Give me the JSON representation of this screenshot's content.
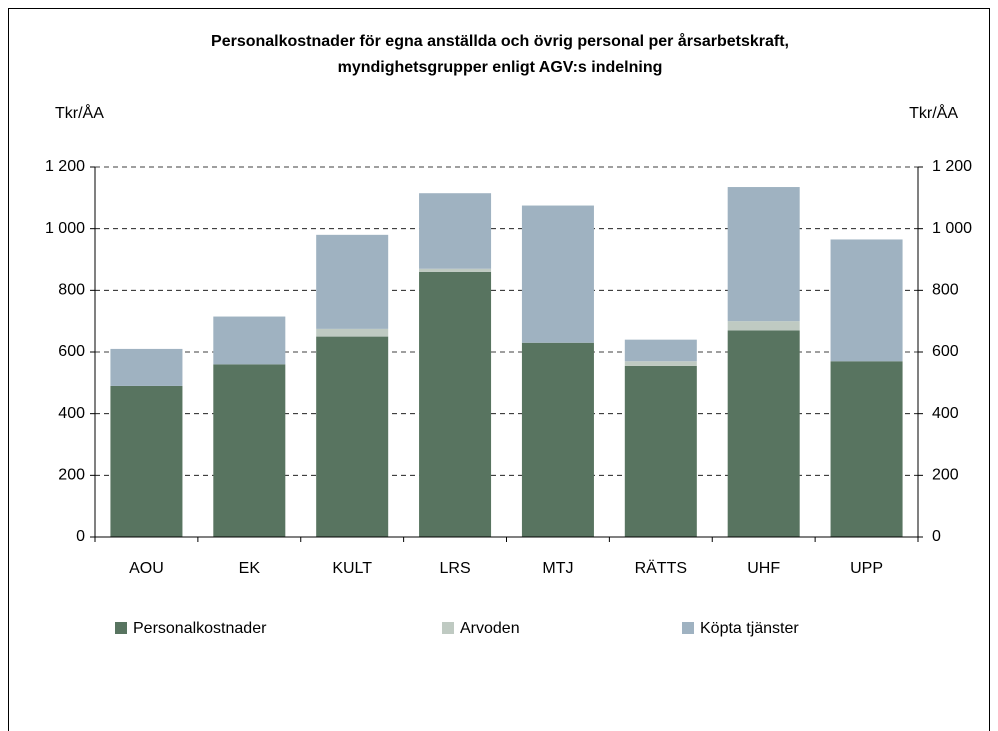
{
  "chart_data": {
    "type": "stacked_bar",
    "title": [
      "Personalkostnader för egna anställda och övrig personal per årsarbetskraft,",
      "myndighetsgrupper enligt AGV:s indelning"
    ],
    "y_label": "Tkr/ÅA",
    "y2_label": "Tkr/ÅA",
    "categories": [
      "AOU",
      "EK",
      "KULT",
      "LRS",
      "MTJ",
      "RÄTTS",
      "UHF",
      "UPP"
    ],
    "series": [
      {
        "name": "Personalkostnader",
        "color": "#587460",
        "values": [
          490,
          560,
          650,
          860,
          630,
          555,
          670,
          570
        ]
      },
      {
        "name": "Arvoden",
        "color": "#bfcac2",
        "values": [
          0,
          0,
          25,
          10,
          0,
          15,
          30,
          0
        ]
      },
      {
        "name": "Köpta tjänster",
        "color": "#9fb2c1",
        "values": [
          120,
          155,
          305,
          245,
          445,
          70,
          435,
          395
        ]
      }
    ],
    "ylim": [
      0,
      1200
    ],
    "yticks": [
      0,
      200,
      400,
      600,
      800,
      {
        "value": 1000,
        "label": "1 000"
      },
      {
        "value": 1200,
        "label": "1 200"
      }
    ],
    "y2lim": [
      0,
      1200
    ],
    "y2ticks": [
      0,
      200,
      400,
      600,
      800,
      {
        "value": 1000,
        "label": "1 000"
      },
      {
        "value": 1200,
        "label": "1 200"
      }
    ],
    "grid": true,
    "legend": "bottom"
  }
}
